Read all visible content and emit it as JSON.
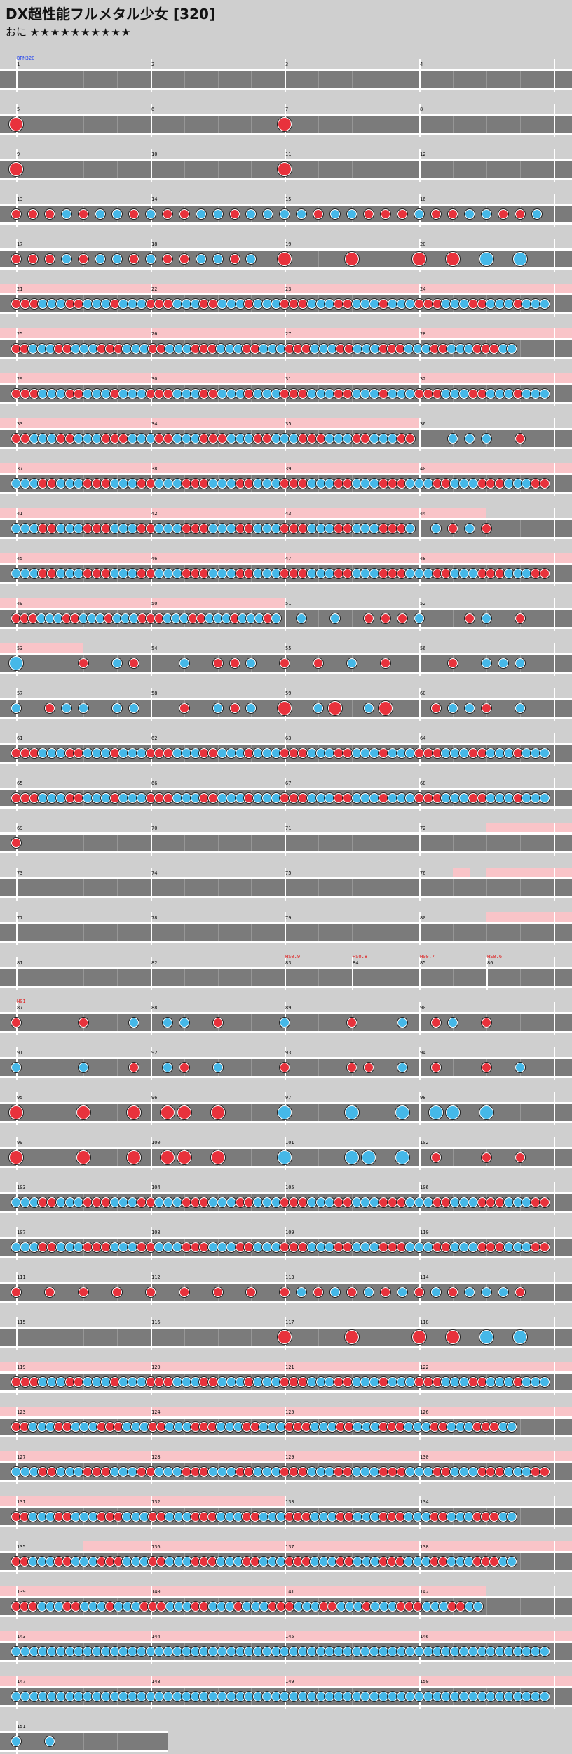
{
  "title": "DX超性能フルメタル少女 [320]",
  "course": "おに",
  "stars": "★★★★★★★★★★",
  "colors": {
    "don": "#e8323c",
    "ka": "#45b8e8",
    "gogo": "#f9c4c8",
    "lane": "#7b7b7b",
    "bg": "#cfcfcf"
  },
  "rows": [
    {
      "m": [
        1,
        2,
        3,
        4
      ],
      "events": [
        {
          "text": "BPM320",
          "pos": 0,
          "color": "#2244ee"
        }
      ],
      "notes": []
    },
    {
      "m": [
        5,
        6,
        7,
        8
      ],
      "notes": [
        [
          0,
          "d",
          1
        ],
        [
          2,
          "d",
          1
        ]
      ]
    },
    {
      "m": [
        9,
        10,
        11,
        12
      ],
      "notes": [
        [
          0,
          "d",
          1
        ],
        [
          2,
          "d",
          1
        ]
      ]
    },
    {
      "m": [
        13,
        14,
        15,
        16
      ],
      "notes": [
        [
          0,
          "d"
        ],
        [
          0.125,
          "d"
        ],
        [
          0.25,
          "d"
        ],
        [
          0.375,
          "k"
        ],
        [
          0.5,
          "d"
        ],
        [
          0.625,
          "k"
        ],
        [
          0.75,
          "k"
        ],
        [
          0.875,
          "d"
        ],
        [
          1,
          "k"
        ],
        [
          1.125,
          "d"
        ],
        [
          1.25,
          "d"
        ],
        [
          1.375,
          "k"
        ],
        [
          1.5,
          "k"
        ],
        [
          1.625,
          "d"
        ],
        [
          1.75,
          "k"
        ],
        [
          1.875,
          "k"
        ],
        [
          2,
          "k"
        ],
        [
          2.125,
          "k"
        ],
        [
          2.25,
          "d"
        ],
        [
          2.375,
          "k"
        ],
        [
          2.5,
          "k"
        ],
        [
          2.625,
          "d"
        ],
        [
          2.75,
          "d"
        ],
        [
          2.875,
          "d"
        ],
        [
          3,
          "k"
        ],
        [
          3.125,
          "d"
        ],
        [
          3.25,
          "d"
        ],
        [
          3.375,
          "k"
        ],
        [
          3.5,
          "k"
        ],
        [
          3.625,
          "d"
        ],
        [
          3.75,
          "d"
        ],
        [
          3.875,
          "k"
        ]
      ]
    },
    {
      "m": [
        17,
        18,
        19,
        20
      ],
      "notes": [
        [
          0,
          "d"
        ],
        [
          0.125,
          "d"
        ],
        [
          0.25,
          "d"
        ],
        [
          0.375,
          "k"
        ],
        [
          0.5,
          "d"
        ],
        [
          0.625,
          "k"
        ],
        [
          0.75,
          "k"
        ],
        [
          0.875,
          "d"
        ],
        [
          1,
          "k"
        ],
        [
          1.125,
          "d"
        ],
        [
          1.25,
          "d"
        ],
        [
          1.375,
          "k"
        ],
        [
          1.5,
          "k"
        ],
        [
          1.625,
          "d"
        ],
        [
          1.75,
          "k"
        ],
        [
          2,
          "d",
          1
        ],
        [
          2.5,
          "d",
          1
        ],
        [
          3,
          "d",
          1
        ],
        [
          3.25,
          "d",
          1
        ],
        [
          3.5,
          "k",
          1
        ],
        [
          3.75,
          "k",
          1
        ]
      ]
    },
    {
      "m": [
        21,
        22,
        23,
        24
      ],
      "gogo": [
        [
          0,
          4.1
        ]
      ],
      "dense": "dddkkkddkkkdkkkdddkkkddkkkdkkkdddkkkddkkkdkkkdddkkkddkkkdkkk"
    },
    {
      "m": [
        25,
        26,
        27,
        28
      ],
      "gogo": [
        [
          0,
          4.1
        ]
      ],
      "dense": "ddkkkddkkkdddkkkddkkkdddkkkddkkkdddkkkddkkkdddkkkddkkkdddkk",
      "len": 3.75
    },
    {
      "m": [
        29,
        30,
        31,
        32
      ],
      "gogo": [
        [
          0,
          4.1
        ]
      ],
      "dense": "dddkkkddkkkdkkkdddkkkddkkkdkkkdddkkkddkkkdkkkdddkkkddkkkdkkk"
    },
    {
      "m": [
        33,
        34,
        35,
        36
      ],
      "gogo": [
        [
          0,
          3
        ]
      ],
      "dense": "ddkkkddkkkdddkkkddkkkdddkkkddkkkdddkkkddkkkdd",
      "len": 3,
      "notes": [
        [
          3.25,
          "k"
        ],
        [
          3.375,
          "k"
        ],
        [
          3.5,
          "k"
        ],
        [
          3.75,
          "d"
        ]
      ]
    },
    {
      "m": [
        37,
        38,
        39,
        40
      ],
      "gogo": [
        [
          0,
          4.1
        ]
      ],
      "dense": "kkkddkkkdddkkkddkkkdddkkkddkkkdddkkkddkkkdddkkkddkkkdddkkkdd"
    },
    {
      "m": [
        41,
        42,
        43,
        44
      ],
      "gogo": [
        [
          0,
          3.5
        ]
      ],
      "dense": "kkkddkkkdddkkkddkkkdddkkkddkkkdddkkkddkkkdddk",
      "len": 3,
      "notes": [
        [
          3.125,
          "k"
        ],
        [
          3.25,
          "d"
        ],
        [
          3.375,
          "k"
        ],
        [
          3.5,
          "d"
        ]
      ]
    },
    {
      "m": [
        45,
        46,
        47,
        48
      ],
      "gogo": [
        [
          0,
          4.1
        ]
      ],
      "dense": "kkkddkkkdddkkkddkkkdddkkkddkkkdddkkkddkkkdddkkkddkkkdddkkkdd"
    },
    {
      "m": [
        49,
        50,
        51,
        52
      ],
      "gogo": [
        [
          0,
          2
        ]
      ],
      "dense": "dddkkkddkkkdkkkdddkkkddkkkdkkkdk",
      "len": 2,
      "notes": [
        [
          2.125,
          "k"
        ],
        [
          2.375,
          "k"
        ],
        [
          2.625,
          "d"
        ],
        [
          2.75,
          "d"
        ],
        [
          2.875,
          "d"
        ],
        [
          3,
          "k"
        ],
        [
          3.375,
          "d"
        ],
        [
          3.5,
          "k"
        ],
        [
          3.75,
          "d"
        ]
      ]
    },
    {
      "m": [
        53,
        54,
        55,
        56
      ],
      "gogo": [
        [
          0,
          0.5
        ]
      ],
      "notes": [
        [
          0,
          "k",
          1
        ],
        [
          0.5,
          "d"
        ],
        [
          0.75,
          "k"
        ],
        [
          0.875,
          "d"
        ],
        [
          1.25,
          "k"
        ],
        [
          1.5,
          "d"
        ],
        [
          1.625,
          "d"
        ],
        [
          1.75,
          "k"
        ],
        [
          2,
          "d"
        ],
        [
          2.25,
          "d"
        ],
        [
          2.5,
          "k"
        ],
        [
          2.75,
          "d"
        ],
        [
          3.25,
          "d"
        ],
        [
          3.5,
          "k"
        ],
        [
          3.625,
          "k"
        ],
        [
          3.75,
          "k"
        ]
      ]
    },
    {
      "m": [
        57,
        58,
        59,
        60
      ],
      "notes": [
        [
          0,
          "k"
        ],
        [
          0.25,
          "d"
        ],
        [
          0.375,
          "k"
        ],
        [
          0.5,
          "k"
        ],
        [
          0.75,
          "k"
        ],
        [
          0.875,
          "k"
        ],
        [
          1.25,
          "d"
        ],
        [
          1.5,
          "k"
        ],
        [
          1.625,
          "d"
        ],
        [
          1.75,
          "k"
        ],
        [
          2,
          "d",
          1
        ],
        [
          2.25,
          "k"
        ],
        [
          2.375,
          "d",
          1
        ],
        [
          2.625,
          "k"
        ],
        [
          2.75,
          "d",
          1
        ],
        [
          3.125,
          "d"
        ],
        [
          3.25,
          "k"
        ],
        [
          3.375,
          "k"
        ],
        [
          3.5,
          "d"
        ],
        [
          3.75,
          "k"
        ]
      ]
    },
    {
      "m": [
        61,
        62,
        63,
        64
      ],
      "dense": "dddkkkddkkkdkkkdddkkkddkkkdkkkdddkkkddkkkdkkkdddkkkddkkkdkkk"
    },
    {
      "m": [
        65,
        66,
        67,
        68
      ],
      "dense": "dddkkkddkkkdkkkdddkkkddkkkdkkkdddkkkddkkkdkkkdddkkkddkkkdkkk"
    },
    {
      "m": [
        69,
        70,
        71,
        72
      ],
      "gogo": [
        [
          3.5,
          4.1
        ]
      ],
      "notes": [
        [
          0,
          "d"
        ]
      ]
    },
    {
      "m": [
        73,
        74,
        75,
        76
      ],
      "gogo": [
        [
          3.25,
          3.375
        ],
        [
          3.5,
          4.1
        ]
      ],
      "notes": []
    },
    {
      "m": [
        77,
        78,
        79,
        80
      ],
      "gogo": [
        [
          3.5,
          4.1
        ]
      ],
      "notes": []
    },
    {
      "m": [
        81,
        82,
        83,
        84,
        85,
        86
      ],
      "bars": [
        0,
        1,
        2,
        2.5,
        3,
        3.5
      ],
      "events": [
        {
          "text": "HS0.9",
          "pos": 2,
          "color": "#e02020"
        },
        {
          "text": "HS0.8",
          "pos": 2.5,
          "color": "#e02020"
        },
        {
          "text": "HS0.7",
          "pos": 3,
          "color": "#e02020"
        },
        {
          "text": "HS0.6",
          "pos": 3.5,
          "color": "#e02020"
        }
      ],
      "notes": []
    },
    {
      "m": [
        87,
        88,
        89,
        90
      ],
      "events": [
        {
          "text": "HS1",
          "pos": 0,
          "color": "#e02020"
        }
      ],
      "notes": [
        [
          0,
          "d"
        ],
        [
          0.5,
          "d"
        ],
        [
          0.875,
          "k"
        ],
        [
          1.125,
          "k"
        ],
        [
          1.25,
          "k"
        ],
        [
          1.5,
          "d"
        ],
        [
          2,
          "k"
        ],
        [
          2.5,
          "d"
        ],
        [
          2.875,
          "k"
        ],
        [
          3.125,
          "d"
        ],
        [
          3.25,
          "k"
        ],
        [
          3.5,
          "d"
        ]
      ]
    },
    {
      "m": [
        91,
        92,
        93,
        94
      ],
      "notes": [
        [
          0,
          "k"
        ],
        [
          0.5,
          "k"
        ],
        [
          0.875,
          "d"
        ],
        [
          1.125,
          "k"
        ],
        [
          1.25,
          "d"
        ],
        [
          1.5,
          "k"
        ],
        [
          2,
          "d"
        ],
        [
          2.5,
          "d"
        ],
        [
          2.625,
          "d"
        ],
        [
          2.875,
          "k"
        ],
        [
          3.125,
          "d"
        ],
        [
          3.5,
          "d"
        ],
        [
          3.75,
          "k"
        ]
      ]
    },
    {
      "m": [
        95,
        96,
        97,
        98
      ],
      "notes": [
        [
          0,
          "d",
          1
        ],
        [
          0.5,
          "d",
          1
        ],
        [
          0.875,
          "d",
          1
        ],
        [
          1.125,
          "d",
          1
        ],
        [
          1.25,
          "d",
          1
        ],
        [
          1.5,
          "d",
          1
        ],
        [
          2,
          "k",
          1
        ],
        [
          2.5,
          "k",
          1
        ],
        [
          2.875,
          "k",
          1
        ],
        [
          3.125,
          "k",
          1
        ],
        [
          3.25,
          "k",
          1
        ],
        [
          3.5,
          "k",
          1
        ]
      ]
    },
    {
      "m": [
        99,
        100,
        101,
        102
      ],
      "notes": [
        [
          0,
          "d",
          1
        ],
        [
          0.5,
          "d",
          1
        ],
        [
          0.875,
          "d",
          1
        ],
        [
          1.125,
          "d",
          1
        ],
        [
          1.25,
          "d",
          1
        ],
        [
          1.5,
          "d",
          1
        ],
        [
          2,
          "k",
          1
        ],
        [
          2.5,
          "k",
          1
        ],
        [
          2.625,
          "k",
          1
        ],
        [
          2.875,
          "k",
          1
        ],
        [
          3.125,
          "d"
        ],
        [
          3.5,
          "d"
        ],
        [
          3.75,
          "d"
        ]
      ]
    },
    {
      "m": [
        103,
        104,
        105,
        106
      ],
      "dense": "kkkddkkkdddkkkddkkkdddkkkddkkkdddkkkddkkkdddkkkddkkkdddkkkdd"
    },
    {
      "m": [
        107,
        108,
        109,
        110
      ],
      "dense": "kkkddkkkdddkkkddkkkdddkkkddkkkdddkkkddkkkdddkkkddkkkdddkkkdd"
    },
    {
      "m": [
        111,
        112,
        113,
        114
      ],
      "notes": [
        [
          0,
          "d"
        ],
        [
          0.25,
          "d"
        ],
        [
          0.5,
          "d"
        ],
        [
          0.75,
          "d"
        ],
        [
          1,
          "d"
        ],
        [
          1.25,
          "d"
        ],
        [
          1.5,
          "d"
        ],
        [
          1.75,
          "d"
        ],
        [
          2,
          "d"
        ],
        [
          2.125,
          "k"
        ],
        [
          2.25,
          "d"
        ],
        [
          2.375,
          "k"
        ],
        [
          2.5,
          "d"
        ],
        [
          2.625,
          "k"
        ],
        [
          2.75,
          "d"
        ],
        [
          2.875,
          "k"
        ],
        [
          3,
          "d"
        ],
        [
          3.125,
          "k"
        ],
        [
          3.25,
          "d"
        ],
        [
          3.375,
          "k"
        ],
        [
          3.5,
          "k"
        ],
        [
          3.625,
          "k"
        ],
        [
          3.75,
          "d"
        ]
      ]
    },
    {
      "m": [
        115,
        116,
        117,
        118
      ],
      "notes": [
        [
          2,
          "d",
          1
        ],
        [
          2.5,
          "d",
          1
        ],
        [
          3,
          "d",
          1
        ],
        [
          3.25,
          "d",
          1
        ],
        [
          3.5,
          "k",
          1
        ],
        [
          3.75,
          "k",
          1
        ]
      ]
    },
    {
      "m": [
        119,
        120,
        121,
        122
      ],
      "gogo": [
        [
          0,
          4.1
        ]
      ],
      "dense": "dddkkkddkkkdkkkdddkkkddkkkdkkkdddkkkddkkkdkkkdddkkkddkkkdkkk"
    },
    {
      "m": [
        123,
        124,
        125,
        126
      ],
      "gogo": [
        [
          0,
          4.1
        ]
      ],
      "dense": "ddkkkddkkkdddkkkddkkkdddkkkddkkkdddkkkddkkkdddkkkddkkkdddkk",
      "len": 3.75
    },
    {
      "m": [
        127,
        128,
        129,
        130
      ],
      "gogo": [
        [
          0,
          4.1
        ]
      ],
      "dense": "kkkddkkkdddkkkddkkkdddkkkddkkkdddkkkddkkkdddkkkddkkkdddkkkdd"
    },
    {
      "m": [
        131,
        132,
        133,
        134
      ],
      "gogo": [
        [
          0,
          2
        ]
      ],
      "dense": "ddkkkddkkkdddkkkddkkkdddkkkddkkkdddkkkddkkkdddkkkddkkkdddkk",
      "len": 3.75
    },
    {
      "m": [
        135,
        136,
        137,
        138
      ],
      "gogo": [
        [
          0.5,
          4.1
        ]
      ],
      "dense": "ddkkkddkkkdddkkkddkkkdddkkkddkkkdddkkkddkkkdddkkkddkkkdddkk",
      "len": 3.75
    },
    {
      "m": [
        139,
        140,
        141,
        142
      ],
      "gogo": [
        [
          0,
          3.5
        ]
      ],
      "dense": "dddkkkddkkkdkkkdddkkkddkkkdkkkdddkkkddkkkdkkkdddkkkddkk",
      "len": 3.5
    },
    {
      "m": [
        143,
        144,
        145,
        146
      ],
      "gogo": [
        [
          0,
          4.1
        ]
      ],
      "dense": "kkkkkkkkkkkkkkkkkkkkkkkkkkkkkkkkkkkkkkkkkkkkkkkkkkkkkkkkkkkk"
    },
    {
      "m": [
        147,
        148,
        149,
        150
      ],
      "gogo": [
        [
          0,
          4.1
        ]
      ],
      "dense": "kkkkkkkkkkkkkkkkkkkkkkkkkkkkkkkkkkkkkkkkkkkkkkkkkkkkkkkkkkkk"
    },
    {
      "m": [
        151
      ],
      "short": true,
      "notes": [
        [
          0,
          "k"
        ],
        [
          0.25,
          "k"
        ]
      ]
    }
  ]
}
